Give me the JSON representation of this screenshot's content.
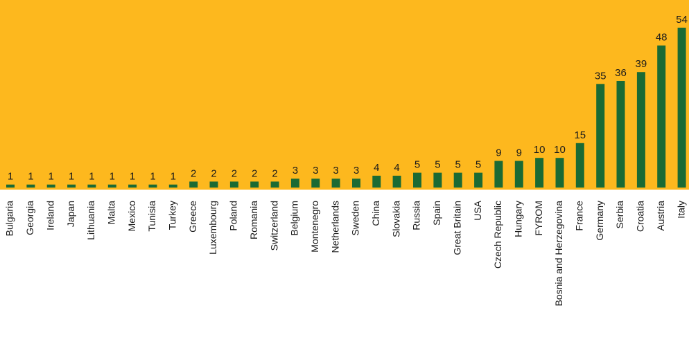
{
  "chart_data": {
    "type": "bar",
    "categories": [
      "Bulgaria",
      "Georgia",
      "Ireland",
      "Japan",
      "Lithuania",
      "Malta",
      "Mexico",
      "Tunisia",
      "Turkey",
      "Greece",
      "Luxembourg",
      "Poland",
      "Romania",
      "Switzerland",
      "Belgium",
      "Montenegro",
      "Netherlands",
      "Sweden",
      "China",
      "Slovakia",
      "Russia",
      "Spain",
      "Great Britain",
      "USA",
      "Czech Republic",
      "Hungary",
      "FYROM",
      "Bosnia and Herzegovina",
      "France",
      "Germany",
      "Serbia",
      "Croatia",
      "Austria",
      "Italy"
    ],
    "values": [
      1,
      1,
      1,
      1,
      1,
      1,
      1,
      1,
      1,
      2,
      2,
      2,
      2,
      2,
      3,
      3,
      3,
      3,
      4,
      4,
      5,
      5,
      5,
      5,
      9,
      9,
      10,
      10,
      15,
      35,
      36,
      39,
      48,
      54
    ],
    "ylim": [
      0,
      54
    ],
    "grid": false,
    "legend": "none",
    "colors": {
      "plot_background": "#FDB81E",
      "bar": "#1A6A34",
      "text": "#1a1a1a",
      "page_background": "#ffffff"
    }
  }
}
